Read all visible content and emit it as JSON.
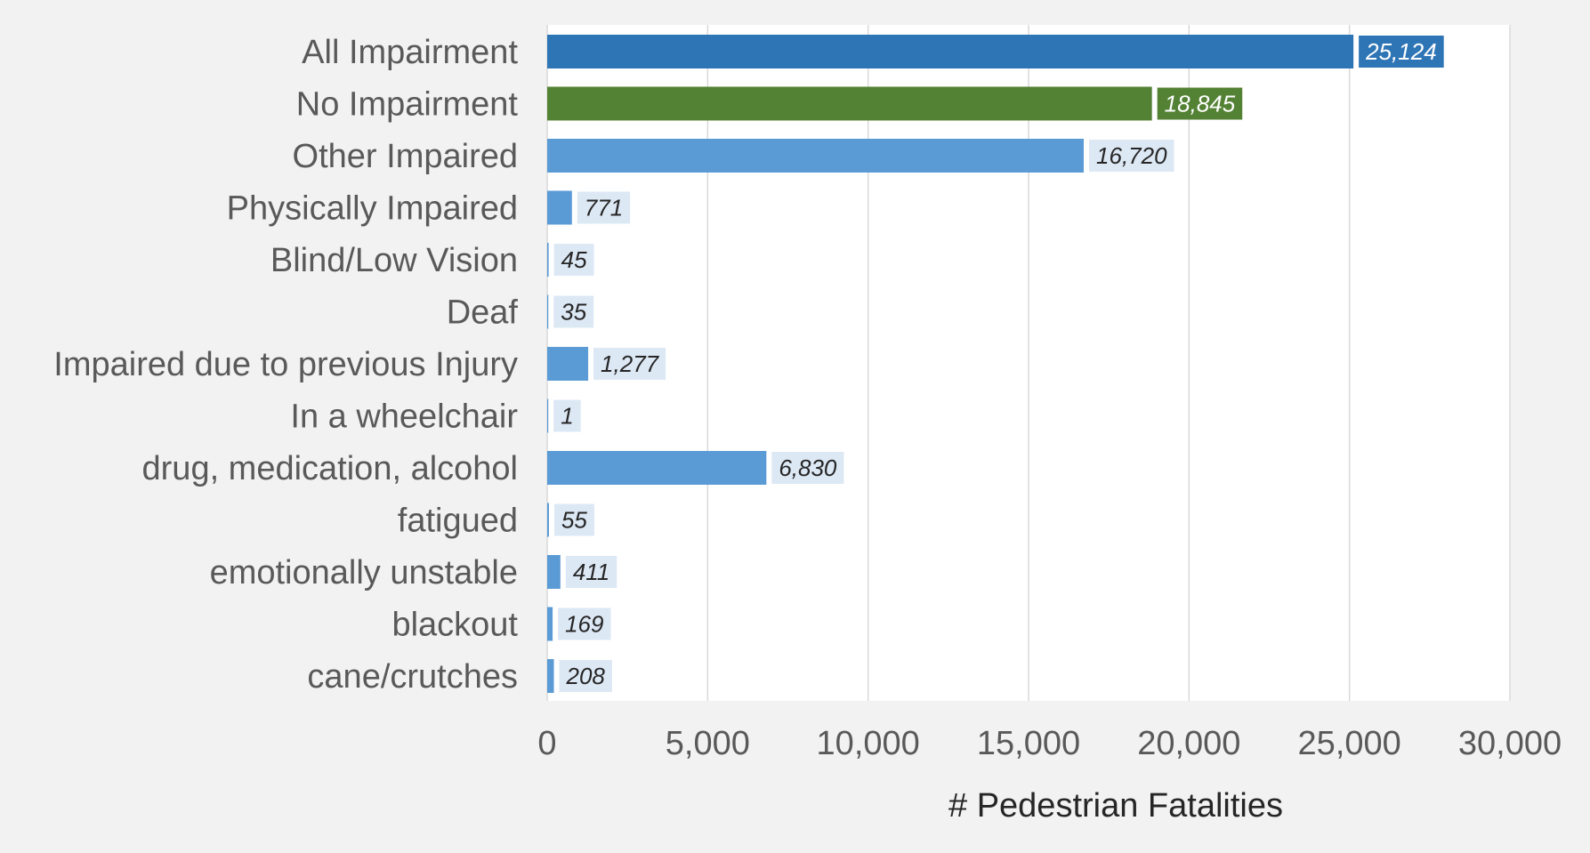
{
  "chart_data": {
    "type": "bar",
    "orientation": "horizontal",
    "title": "",
    "xlabel": "# Pedestrian Fatalities",
    "ylabel": "",
    "xlim": [
      0,
      30000
    ],
    "x_ticks": [
      0,
      5000,
      10000,
      15000,
      20000,
      25000,
      30000
    ],
    "x_tick_labels": [
      "0",
      "5,000",
      "10,000",
      "15,000",
      "20,000",
      "25,000",
      "30,000"
    ],
    "grid": "vertical",
    "legend": "none",
    "categories": [
      "All Impairment",
      "No Impairment",
      "Other Impaired",
      "Physically Impaired",
      "Blind/Low Vision",
      "Deaf",
      "Impaired due to previous Injury",
      "In a wheelchair",
      "drug, medication, alcohol",
      "fatigued",
      "emotionally unstable",
      "blackout",
      "cane/crutches"
    ],
    "values": [
      25124,
      18845,
      16720,
      771,
      45,
      35,
      1277,
      1,
      6830,
      55,
      411,
      169,
      208
    ],
    "data_labels": [
      "25,124",
      "18,845",
      "16,720",
      "771",
      "45",
      "35",
      "1,277",
      "1",
      "6,830",
      "55",
      "411",
      "169",
      "208"
    ],
    "bar_colors": [
      "#2e75b6",
      "#548235",
      "#5b9bd5",
      "#5b9bd5",
      "#5b9bd5",
      "#5b9bd5",
      "#5b9bd5",
      "#5b9bd5",
      "#5b9bd5",
      "#5b9bd5",
      "#5b9bd5",
      "#5b9bd5",
      "#5b9bd5"
    ],
    "label_styles": [
      "filled",
      "filled",
      "light",
      "light",
      "light",
      "light",
      "light",
      "light",
      "light",
      "light",
      "light",
      "light",
      "light"
    ],
    "colors": {
      "background": "#f2f2f2",
      "plot_background": "#ffffff",
      "gridline": "#d9d9d9",
      "light_label_bg": "#dde8f5",
      "light_label_text": "#262626",
      "filled_label_text": "#ffffff"
    }
  }
}
